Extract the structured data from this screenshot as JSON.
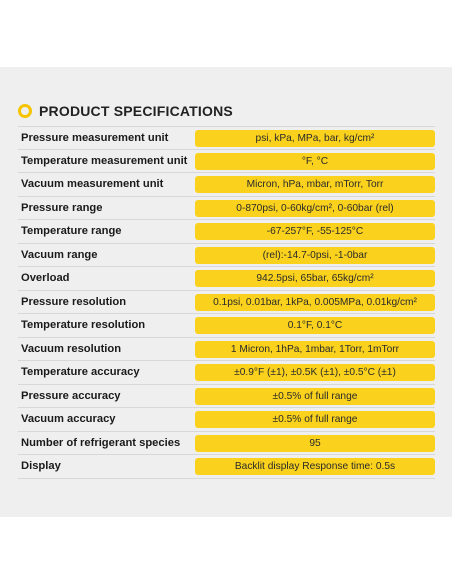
{
  "title": "PRODUCT SPECIFICATIONS",
  "accent_color": "#f6c400",
  "value_bg_color": "#fad21e",
  "icon": "ring-icon",
  "rows": [
    {
      "label": "Pressure measurement unit",
      "value": "psi, kPa, MPa, bar, kg/cm²"
    },
    {
      "label": "Temperature measurement unit",
      "value": "°F, °C"
    },
    {
      "label": "Vacuum measurement unit",
      "value": "Micron, hPa, mbar, mTorr, Torr"
    },
    {
      "label": "Pressure range",
      "value": "0-870psi, 0-60kg/cm², 0-60bar (rel)"
    },
    {
      "label": "Temperature range",
      "value": "-67-257°F, -55-125°C"
    },
    {
      "label": "Vacuum range",
      "value": "(rel):-14.7-0psi, -1-0bar"
    },
    {
      "label": "Overload",
      "value": "942.5psi, 65bar, 65kg/cm²"
    },
    {
      "label": "Pressure resolution",
      "value": "0.1psi, 0.01bar, 1kPa, 0.005MPa, 0.01kg/cm²"
    },
    {
      "label": "Temperature resolution",
      "value": "0.1°F, 0.1°C"
    },
    {
      "label": "Vacuum resolution",
      "value": "1 Micron, 1hPa, 1mbar, 1Torr, 1mTorr"
    },
    {
      "label": "Temperature accuracy",
      "value": "±0.9°F (±1), ±0.5K (±1), ±0.5°C (±1)"
    },
    {
      "label": "Pressure accuracy",
      "value": "±0.5% of full range"
    },
    {
      "label": "Vacuum accuracy",
      "value": "±0.5% of full range"
    },
    {
      "label": "Number of refrigerant species",
      "value": "95"
    },
    {
      "label": "Display",
      "value": "Backlit display Response time:  0.5s"
    }
  ]
}
